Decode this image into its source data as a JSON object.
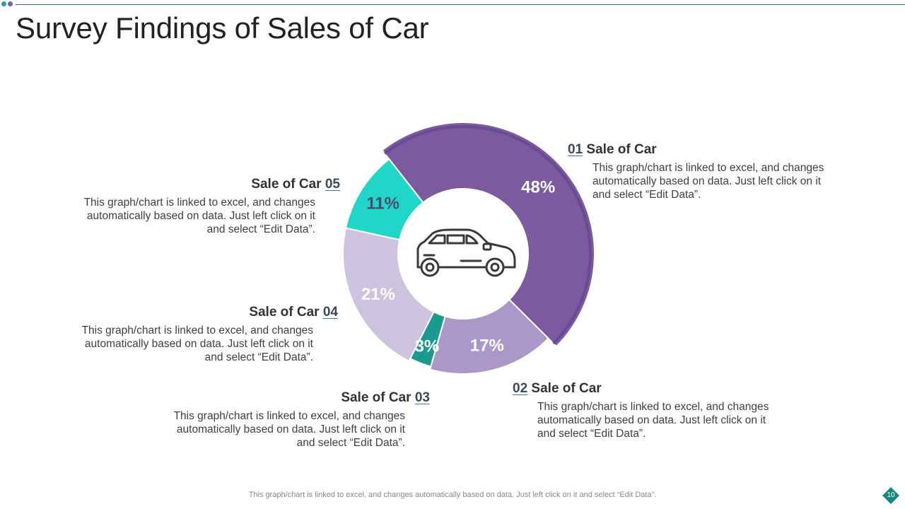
{
  "page": {
    "title": "Survey Findings of Sales of Car",
    "footer": "This graph/chart is linked to excel,  and changes automatically based on data. Just left click on it and select “Edit Data”.",
    "page_number": "10"
  },
  "colors": {
    "title_rule": "#2f6f7a",
    "dot_teal": "#2a9d9f",
    "dot_purple": "#7b5aa6",
    "badge": "#138a84"
  },
  "center_icon": "car-icon",
  "callouts": {
    "c01": {
      "num": "01",
      "label": "Sale of Car",
      "desc": "This graph/chart is linked to excel, and changes automatically based on data. Just left click on it and select “Edit Data”."
    },
    "c02": {
      "num": "02",
      "label": "Sale of Car",
      "desc": "This graph/chart is linked to excel, and changes automatically based on data. Just left click on it and select “Edit Data”."
    },
    "c03": {
      "num": "03",
      "label": "Sale of Car",
      "desc": "This graph/chart is linked to excel, and changes automatically based on data. Just left click on it and select “Edit Data”."
    },
    "c04": {
      "num": "04",
      "label": "Sale of Car",
      "desc": "This graph/chart is linked to excel, and changes automatically based on data. Just left click on it and select “Edit Data”."
    },
    "c05": {
      "num": "05",
      "label": "Sale of Car",
      "desc": "This graph/chart is linked to excel, and changes automatically based on data. Just left click on it and select “Edit Data”."
    }
  },
  "chart_data": {
    "type": "pie",
    "title": "Survey Findings of Sales of Car",
    "categories": [
      "Sale of Car 01",
      "Sale of Car 02",
      "Sale of Car 03",
      "Sale of Car 04",
      "Sale of Car 05"
    ],
    "values": [
      48,
      17,
      3,
      21,
      11
    ],
    "labels": [
      "48%",
      "17%",
      "3%",
      "21%",
      "11%"
    ],
    "colors": [
      "#7b5aa0",
      "#ab97c8",
      "#1a9a8f",
      "#cdc3de",
      "#1fd6c8"
    ],
    "label_colors": [
      "#ffffff",
      "#ffffff",
      "#ffffff",
      "#ffffff",
      "#4b4b6a"
    ],
    "donut": true
  }
}
